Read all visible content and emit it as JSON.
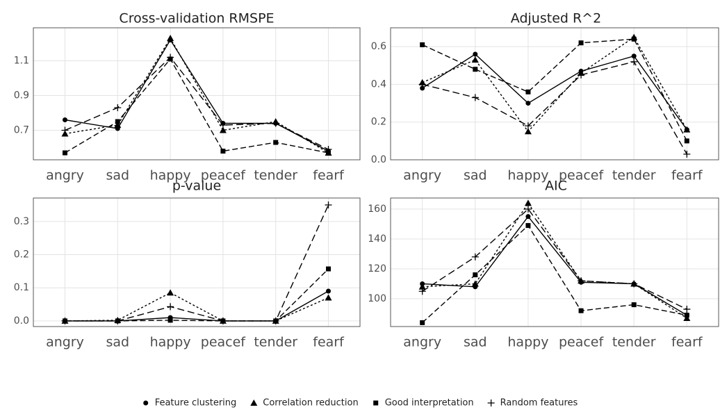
{
  "chart_data": [
    {
      "type": "line",
      "title": "Cross-validation RMSPE",
      "grid": true,
      "categories": [
        "angry",
        "sad",
        "happy",
        "peacef",
        "tender",
        "fearf"
      ],
      "ylim": [
        0.53,
        1.29
      ],
      "yticks": [
        0.7,
        0.9,
        1.1
      ],
      "series": [
        {
          "name": "Feature clustering",
          "marker": "circle",
          "dash": "solid",
          "color": "#000000",
          "values": [
            0.76,
            0.71,
            1.22,
            0.74,
            0.74,
            0.58
          ]
        },
        {
          "name": "Correlation reduction",
          "marker": "triangle",
          "dash": "dotted",
          "color": "#000000",
          "values": [
            0.68,
            0.73,
            1.23,
            0.7,
            0.75,
            0.57
          ]
        },
        {
          "name": "Good interpretation",
          "marker": "square",
          "dash": "dashed",
          "color": "#000000",
          "values": [
            0.57,
            0.75,
            1.11,
            0.58,
            0.63,
            0.57
          ]
        },
        {
          "name": "Random features",
          "marker": "plus",
          "dash": "longdash",
          "color": "#000000",
          "values": [
            0.7,
            0.83,
            1.12,
            0.73,
            0.74,
            0.59
          ]
        }
      ]
    },
    {
      "type": "line",
      "title": "Adjusted R^2",
      "grid": true,
      "categories": [
        "angry",
        "sad",
        "happy",
        "peacef",
        "tender",
        "fearf"
      ],
      "ylim": [
        0,
        0.7
      ],
      "yticks": [
        {
          "value": 0,
          "label": "0.0"
        },
        0.2,
        0.4,
        0.6
      ],
      "series": [
        {
          "values": [
            0.38,
            0.56,
            0.3,
            0.47,
            0.55,
            0.16
          ]
        },
        {
          "values": [
            0.41,
            0.53,
            0.15,
            0.46,
            0.65,
            0.16
          ]
        },
        {
          "values": [
            0.61,
            0.48,
            0.36,
            0.62,
            0.64,
            0.1
          ]
        },
        {
          "values": [
            0.4,
            0.33,
            0.18,
            0.45,
            0.52,
            0.03
          ]
        }
      ]
    },
    {
      "type": "line",
      "title": "p-value",
      "grid": true,
      "categories": [
        "angry",
        "sad",
        "happy",
        "peacef",
        "tender",
        "fearf"
      ],
      "ylim": [
        -0.017,
        0.371
      ],
      "yticks": [
        {
          "value": 0,
          "label": "0.0"
        },
        0.1,
        0.2,
        0.3
      ],
      "series": [
        {
          "values": [
            0,
            0,
            0.01,
            0,
            0,
            0.09
          ]
        },
        {
          "values": [
            0,
            0.002,
            0.085,
            0,
            0,
            0.07
          ]
        },
        {
          "values": [
            0,
            0,
            0.002,
            0,
            0,
            0.157
          ]
        },
        {
          "values": [
            0,
            0,
            0.043,
            0,
            0,
            0.35
          ]
        }
      ]
    },
    {
      "type": "line",
      "title": "AIC",
      "grid": true,
      "categories": [
        "angry",
        "sad",
        "happy",
        "peacef",
        "tender",
        "fearf"
      ],
      "ylim": [
        81.4,
        167.4
      ],
      "yticks": [
        100,
        120,
        140,
        160
      ],
      "series": [
        {
          "values": [
            110,
            108,
            155,
            111,
            110,
            89
          ]
        },
        {
          "values": [
            108,
            110,
            164,
            112,
            110,
            87
          ]
        },
        {
          "values": [
            84,
            116,
            149,
            92,
            96,
            89
          ]
        },
        {
          "values": [
            105,
            128,
            160,
            112,
            110,
            93
          ]
        }
      ]
    }
  ]
}
